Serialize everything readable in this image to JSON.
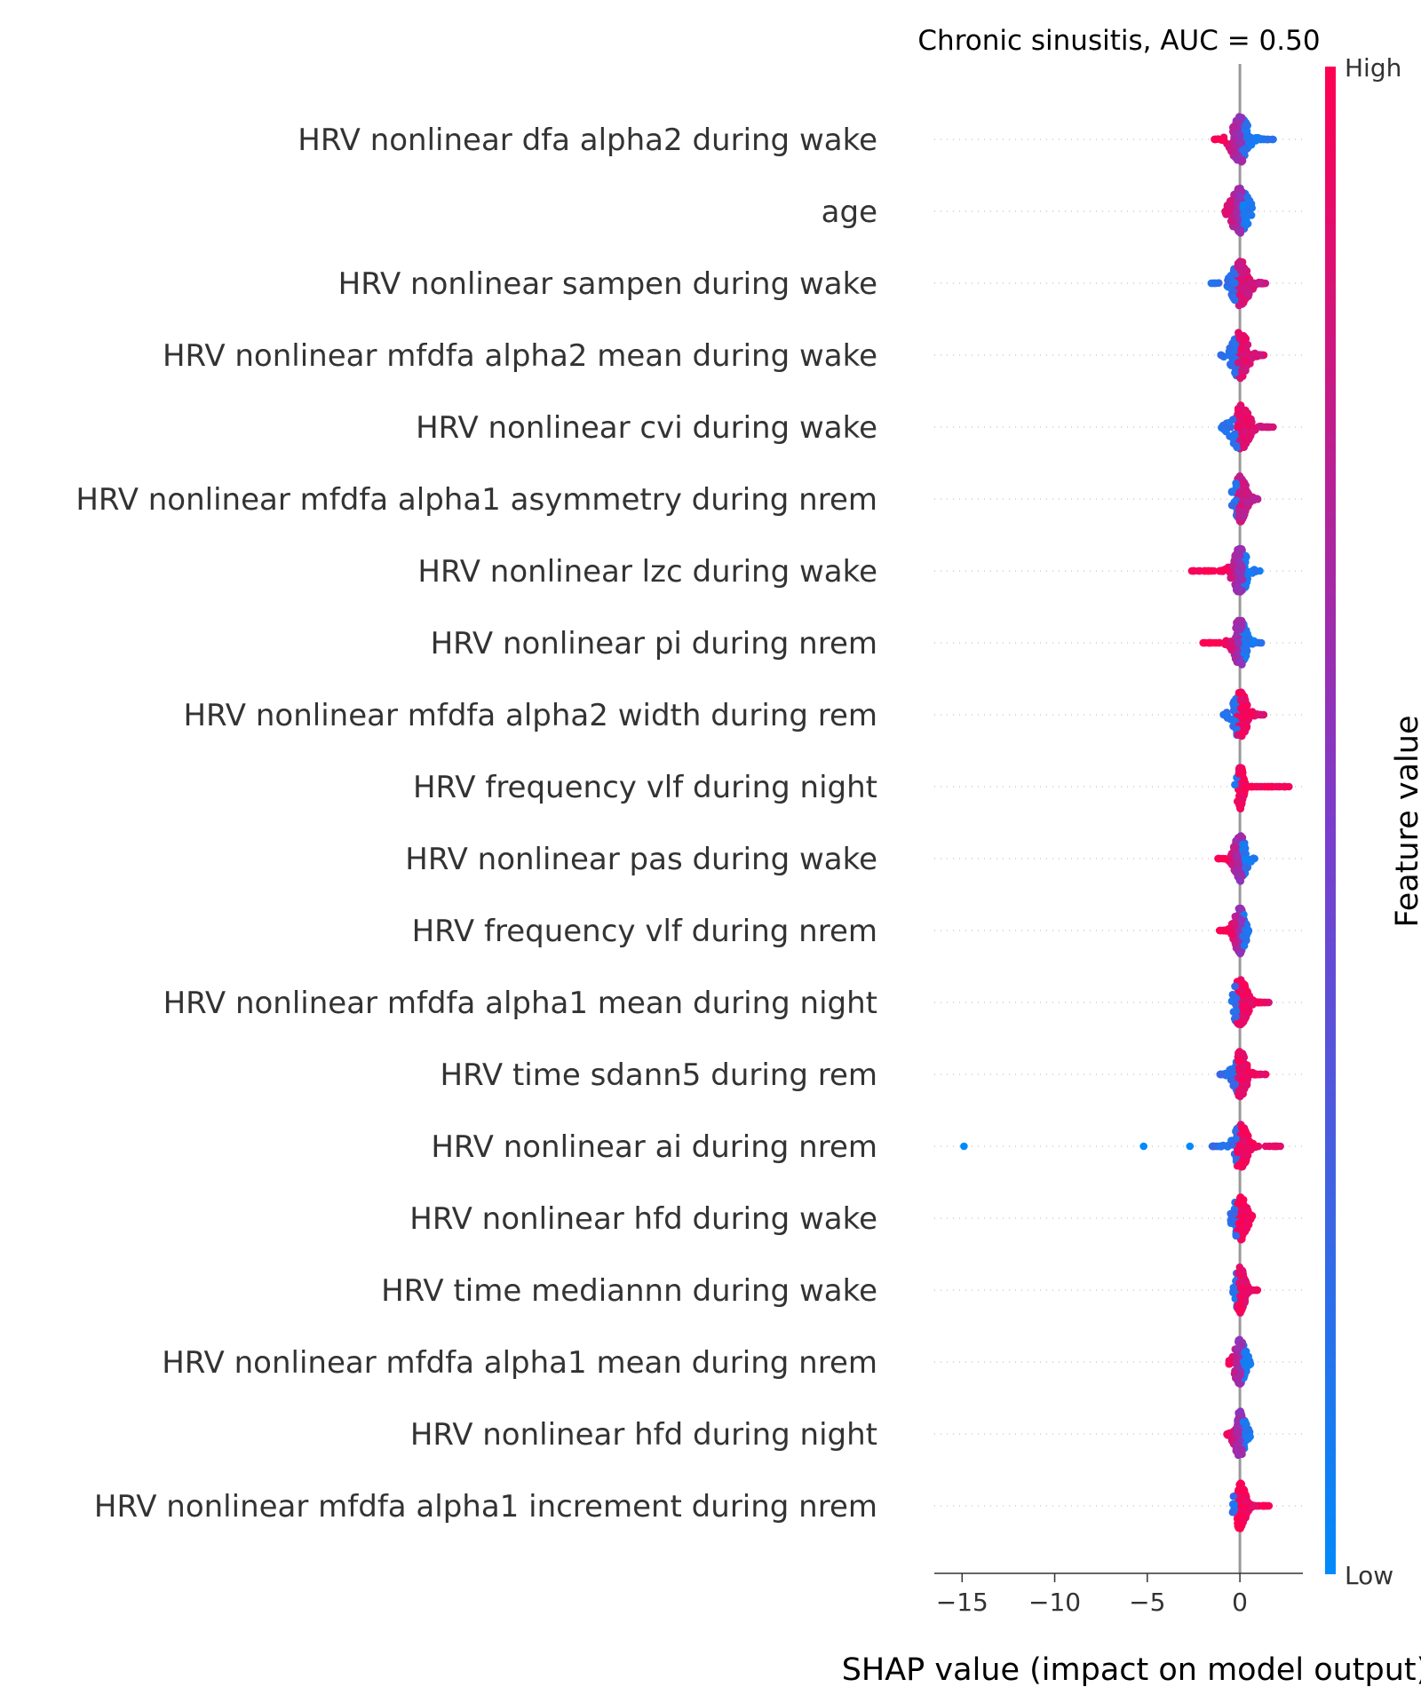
{
  "chart_data": {
    "type": "scatter",
    "subtype": "shap-beeswarm-summary",
    "title": "Chronic sinusitis, AUC =  0.50",
    "xlabel": "SHAP value (impact on model output)",
    "xlim": [
      -16.5,
      3.4
    ],
    "xticks": [
      {
        "value": -15,
        "label": "−15"
      },
      {
        "value": -10,
        "label": "−10"
      },
      {
        "value": -5,
        "label": "−5"
      },
      {
        "value": 0,
        "label": "0"
      }
    ],
    "colorbar": {
      "label": "Feature value",
      "high_label": "High",
      "low_label": "Low",
      "low_color": "#008afb",
      "mid_color": "#7c3ccb",
      "high_color": "#ff0052"
    },
    "zero_line_color": "#999999",
    "features": [
      {
        "name": "HRV nonlinear dfa alpha2 during wake",
        "min": -1.4,
        "max": 1.8,
        "core_lo": -0.5,
        "core_hi": 0.6,
        "low_side": "right",
        "color_mix": 0.25
      },
      {
        "name": "age",
        "min": -0.8,
        "max": 0.7,
        "core_lo": -0.5,
        "core_hi": 0.6,
        "low_side": "right",
        "color_mix": 0.45
      },
      {
        "name": "HRV nonlinear sampen during wake",
        "min": -1.6,
        "max": 1.6,
        "core_lo": -0.5,
        "core_hi": 0.6,
        "low_side": "left",
        "color_mix": 0.75
      },
      {
        "name": "HRV nonlinear mfdfa alpha2 mean during wake",
        "min": -1.2,
        "max": 1.3,
        "core_lo": -0.5,
        "core_hi": 0.5,
        "low_side": "left",
        "color_mix": 0.8
      },
      {
        "name": "HRV nonlinear cvi during wake",
        "min": -1.0,
        "max": 1.8,
        "core_lo": -0.4,
        "core_hi": 0.7,
        "low_side": "left",
        "color_mix": 0.8
      },
      {
        "name": "HRV nonlinear mfdfa alpha1 asymmetry during nrem",
        "min": -0.5,
        "max": 1.0,
        "core_lo": -0.3,
        "core_hi": 0.5,
        "low_side": "left",
        "color_mix": 0.7
      },
      {
        "name": "HRV nonlinear lzc during wake",
        "min": -2.6,
        "max": 1.2,
        "core_lo": -0.4,
        "core_hi": 0.5,
        "low_side": "right",
        "color_mix": 0.2
      },
      {
        "name": "HRV nonlinear pi during nrem",
        "min": -2.0,
        "max": 1.2,
        "core_lo": -0.4,
        "core_hi": 0.5,
        "low_side": "right",
        "color_mix": 0.3
      },
      {
        "name": "HRV nonlinear mfdfa alpha2 width during rem",
        "min": -0.9,
        "max": 1.3,
        "core_lo": -0.4,
        "core_hi": 0.5,
        "low_side": "left",
        "color_mix": 0.85
      },
      {
        "name": "HRV frequency vlf during night",
        "min": -0.5,
        "max": 2.7,
        "core_lo": -0.1,
        "core_hi": 0.3,
        "low_side": "left",
        "color_mix": 0.9
      },
      {
        "name": "HRV nonlinear pas during wake",
        "min": -1.2,
        "max": 0.8,
        "core_lo": -0.4,
        "core_hi": 0.4,
        "low_side": "right",
        "color_mix": 0.3
      },
      {
        "name": "HRV frequency vlf during nrem",
        "min": -1.1,
        "max": 0.5,
        "core_lo": -0.3,
        "core_hi": 0.4,
        "low_side": "right",
        "color_mix": 0.3
      },
      {
        "name": "HRV nonlinear mfdfa alpha1 mean during night",
        "min": -0.5,
        "max": 1.6,
        "core_lo": -0.3,
        "core_hi": 0.6,
        "low_side": "left",
        "color_mix": 0.85
      },
      {
        "name": "HRV time sdann5 during rem",
        "min": -1.1,
        "max": 1.4,
        "core_lo": -0.3,
        "core_hi": 0.5,
        "low_side": "left",
        "color_mix": 0.85
      },
      {
        "name": "HRV nonlinear ai during nrem",
        "min": -1.5,
        "max": 2.3,
        "core_lo": -0.3,
        "core_hi": 0.6,
        "low_side": "left",
        "color_mix": 0.85,
        "outliers": [
          {
            "x": -14.9,
            "v": 0
          },
          {
            "x": -5.2,
            "v": 0
          },
          {
            "x": -2.7,
            "v": 0
          }
        ]
      },
      {
        "name": "HRV nonlinear hfd during wake",
        "min": -0.5,
        "max": 0.8,
        "core_lo": -0.3,
        "core_hi": 0.5,
        "low_side": "left",
        "color_mix": 0.9
      },
      {
        "name": "HRV time mediannn during wake",
        "min": -0.4,
        "max": 1.0,
        "core_lo": -0.2,
        "core_hi": 0.4,
        "low_side": "left",
        "color_mix": 0.85
      },
      {
        "name": "HRV nonlinear mfdfa alpha1 mean during nrem",
        "min": -0.6,
        "max": 0.6,
        "core_lo": -0.3,
        "core_hi": 0.4,
        "low_side": "right",
        "color_mix": 0.25
      },
      {
        "name": "HRV nonlinear hfd during night",
        "min": -0.7,
        "max": 0.6,
        "core_lo": -0.3,
        "core_hi": 0.4,
        "low_side": "right",
        "color_mix": 0.25
      },
      {
        "name": "HRV nonlinear mfdfa alpha1 increment during nrem",
        "min": -0.4,
        "max": 1.6,
        "core_lo": -0.2,
        "core_hi": 0.5,
        "low_side": "left",
        "color_mix": 0.9
      }
    ]
  }
}
